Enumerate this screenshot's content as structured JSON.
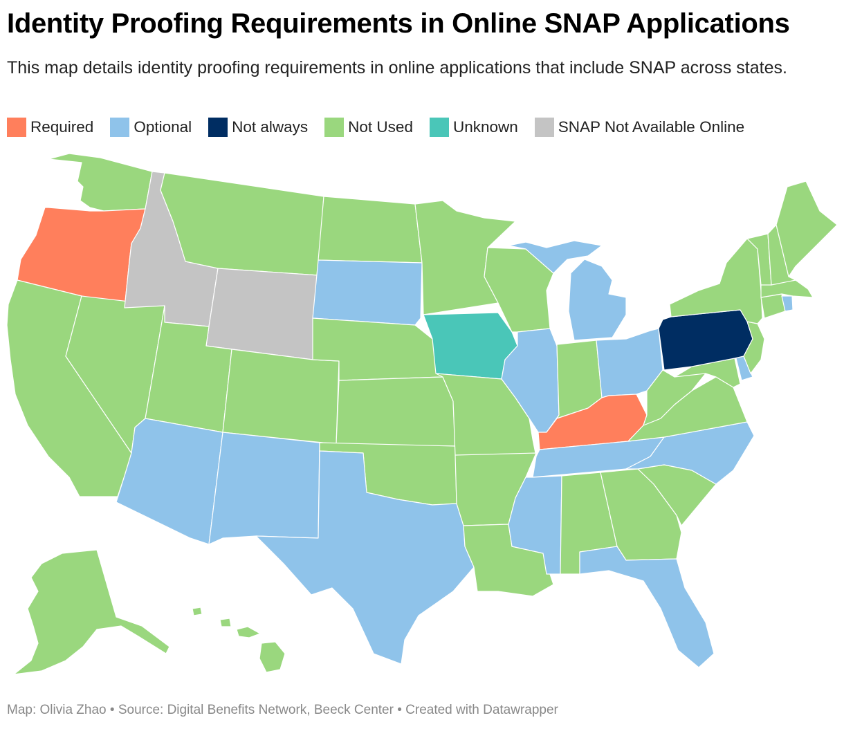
{
  "title": "Identity Proofing Requirements in Online SNAP Applications",
  "subtitle": "This map details identity proofing requirements in online applications that include SNAP across states.",
  "legend": [
    {
      "key": "required",
      "label": "Required",
      "color": "#ff7f5c"
    },
    {
      "key": "optional",
      "label": "Optional",
      "color": "#8fc3ea"
    },
    {
      "key": "not_always",
      "label": "Not always",
      "color": "#002d62"
    },
    {
      "key": "not_used",
      "label": "Not Used",
      "color": "#9ad77e"
    },
    {
      "key": "unknown",
      "label": "Unknown",
      "color": "#4ac6b8"
    },
    {
      "key": "not_available",
      "label": "SNAP Not Available Online",
      "color": "#c4c4c4"
    }
  ],
  "states": {
    "WA": "not_used",
    "OR": "required",
    "CA": "not_used",
    "NV": "not_used",
    "ID": "not_available",
    "MT": "not_used",
    "WY": "not_available",
    "UT": "not_used",
    "AZ": "optional",
    "CO": "not_used",
    "NM": "optional",
    "ND": "not_used",
    "SD": "optional",
    "NE": "not_used",
    "KS": "not_used",
    "OK": "not_used",
    "TX": "optional",
    "MN": "not_used",
    "IA": "unknown",
    "MO": "not_used",
    "AR": "not_used",
    "LA": "not_used",
    "WI": "not_used",
    "IL": "optional",
    "MI": "optional",
    "IN": "not_used",
    "OH": "optional",
    "KY": "required",
    "TN": "optional",
    "MS": "optional",
    "AL": "not_used",
    "GA": "not_used",
    "FL": "optional",
    "SC": "not_used",
    "NC": "optional",
    "VA": "not_used",
    "WV": "not_used",
    "MD": "not_used",
    "DE": "optional",
    "NJ": "not_used",
    "PA": "not_always",
    "NY": "not_used",
    "CT": "not_used",
    "RI": "optional",
    "MA": "not_used",
    "VT": "not_used",
    "NH": "not_used",
    "ME": "not_used",
    "AK": "not_used",
    "HI": "not_used"
  },
  "footer": "Map: Olivia Zhao • Source: Digital Benefits Network, Beeck Center • Created with Datawrapper"
}
